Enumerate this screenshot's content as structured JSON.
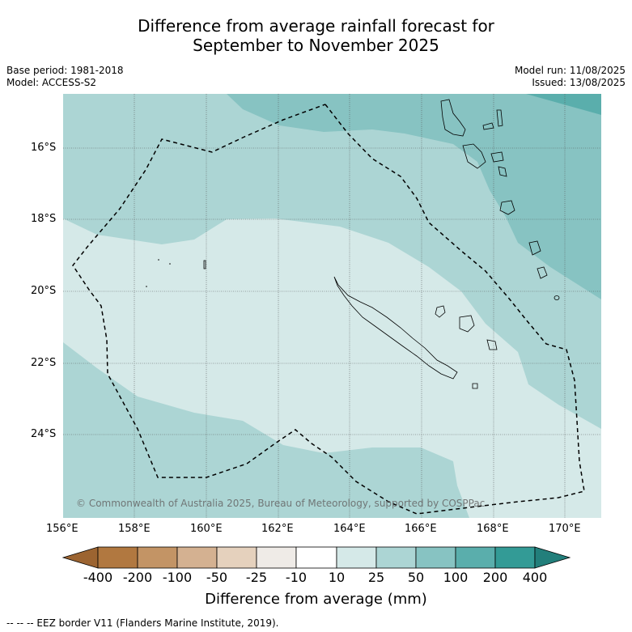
{
  "title": {
    "line1": "Difference from average rainfall forecast for",
    "line2": "September to November 2025"
  },
  "meta": {
    "base_period": "Base period: 1981-2018",
    "model": "Model: ACCESS-S2",
    "model_run": "Model run: 11/08/2025",
    "issued": "Issued: 13/08/2025"
  },
  "map": {
    "lat_labels": [
      "16°S",
      "18°S",
      "20°S",
      "22°S",
      "24°S"
    ],
    "lon_labels": [
      "156°E",
      "158°E",
      "160°E",
      "162°E",
      "164°E",
      "166°E",
      "168°E",
      "170°E"
    ],
    "copyright": "© Commonwealth of Australia 2025, Bureau of Meteorology, supported by COSPPac",
    "lon_range": [
      156,
      171
    ],
    "lat_range": [
      -26.3,
      -14.5
    ],
    "colors": {
      "10_25": "#d5e9e8",
      "25_50": "#acd5d4",
      "50_100": "#87c3c2",
      "100_200": "#5aaeac"
    }
  },
  "colorbar": {
    "labels": [
      "-400",
      "-200",
      "-100",
      "-50",
      "-25",
      "-10",
      "10",
      "25",
      "50",
      "100",
      "200",
      "400"
    ],
    "colors": [
      "#9c6431",
      "#b17840",
      "#c39465",
      "#d4b191",
      "#e5d1bd",
      "#efebe7",
      "#ffffff",
      "#d5e9e8",
      "#acd5d4",
      "#87c3c2",
      "#5aaeac",
      "#339b96",
      "#227f7b"
    ],
    "title": "Difference from average (mm)"
  },
  "footer": "-- -- -- EEZ border V11 (Flanders Marine Institute, 2019)."
}
